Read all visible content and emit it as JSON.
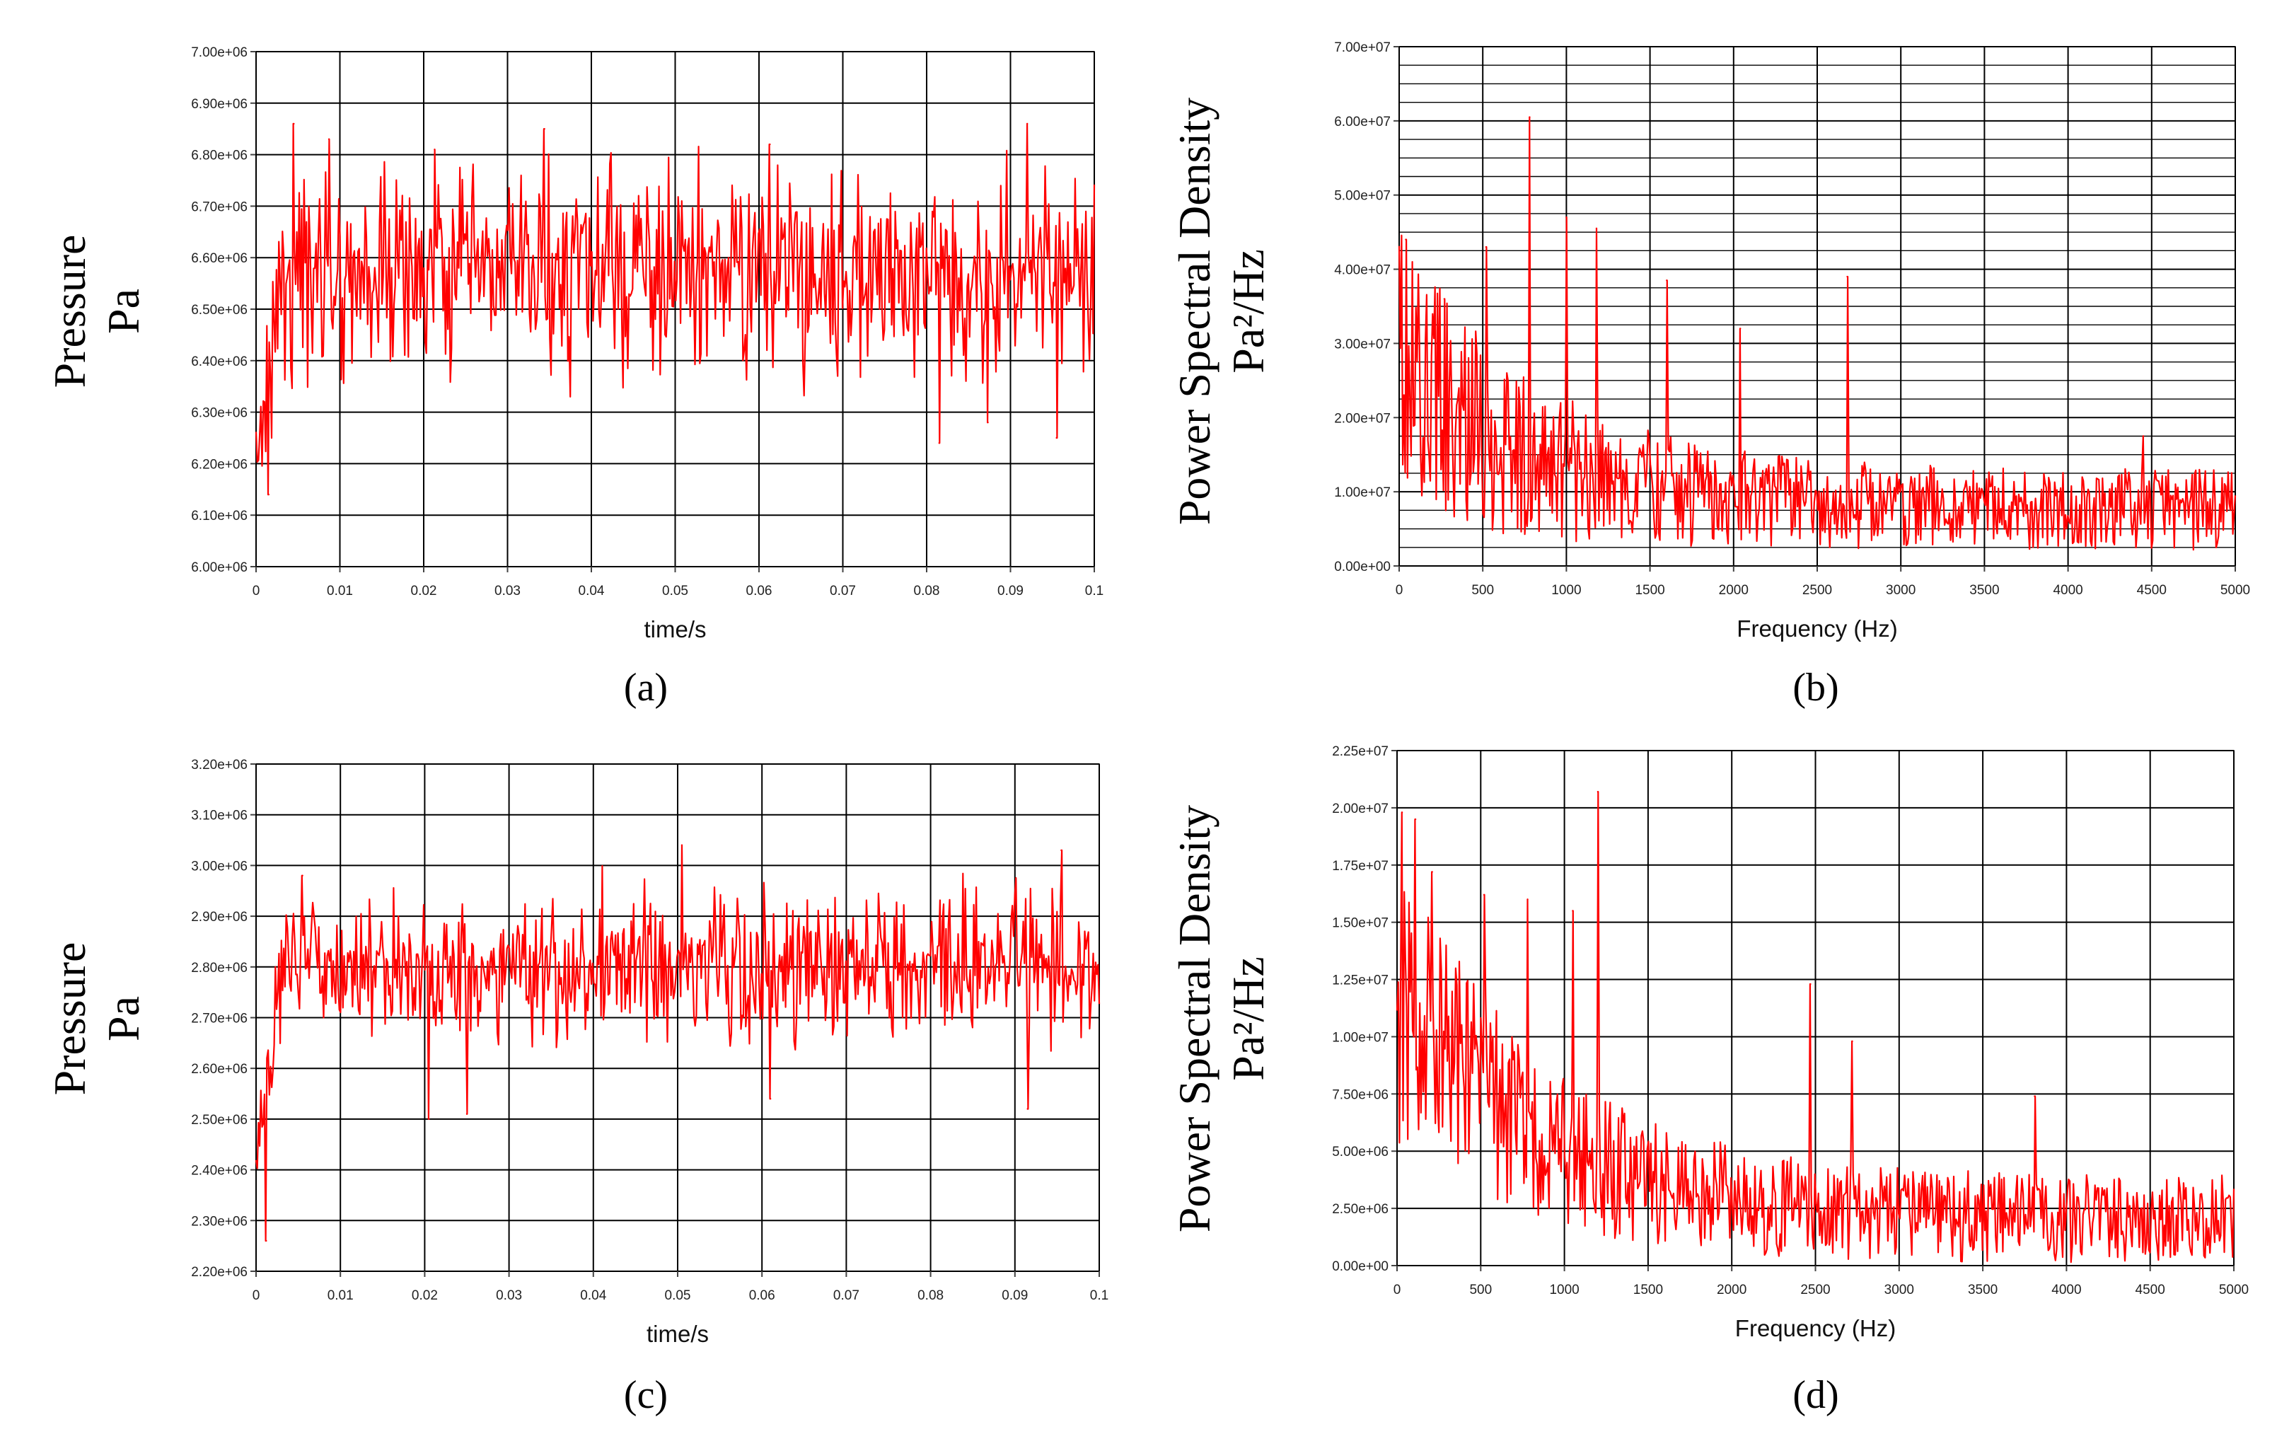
{
  "figure": {
    "panels": [
      "a",
      "b",
      "c",
      "d"
    ]
  },
  "chart_data": [
    {
      "id": "a",
      "type": "line",
      "caption": "(a)",
      "ylabel_lines": [
        "Pressure",
        "Pa"
      ],
      "xlabel": "time/s",
      "x_ticks": [
        "0",
        "0.01",
        "0.02",
        "0.03",
        "0.04",
        "0.05",
        "0.06",
        "0.07",
        "0.08",
        "0.09",
        "0.1"
      ],
      "y_ticks": [
        "6.00e+06",
        "6.10e+06",
        "6.20e+06",
        "6.30e+06",
        "6.40e+06",
        "6.50e+06",
        "6.60e+06",
        "6.70e+06",
        "6.80e+06",
        "6.90e+06",
        "7.00e+06"
      ],
      "xlim": [
        0,
        0.1
      ],
      "ylim": [
        6000000,
        7000000
      ],
      "series_color": "#ff0000",
      "signal": {
        "kind": "time",
        "baseline": 6570000,
        "amplitude": 95000,
        "start_value": 6200000,
        "min_value": 6140000,
        "max_value": 6860000,
        "num_points": 700
      },
      "peaks": [
        {
          "x": 0.0015,
          "y": 6140000
        },
        {
          "x": 0.0045,
          "y": 6860000
        },
        {
          "x": 0.0087,
          "y": 6830000
        },
        {
          "x": 0.0213,
          "y": 6810000
        },
        {
          "x": 0.0344,
          "y": 6850000
        },
        {
          "x": 0.0613,
          "y": 6820000
        },
        {
          "x": 0.0815,
          "y": 6240000
        },
        {
          "x": 0.0873,
          "y": 6280000
        },
        {
          "x": 0.092,
          "y": 6860000
        },
        {
          "x": 0.0955,
          "y": 6250000
        }
      ]
    },
    {
      "id": "b",
      "type": "line",
      "caption": "(b)",
      "ylabel_lines": [
        "Power Spectral Density",
        "Pa²/Hz"
      ],
      "xlabel": "Frequency (Hz)",
      "x_ticks": [
        "0",
        "500",
        "1000",
        "1500",
        "2000",
        "2500",
        "3000",
        "3500",
        "4000",
        "4500",
        "5000"
      ],
      "y_ticks": [
        "0.00e+00",
        "1.00e+07",
        "2.00e+07",
        "3.00e+07",
        "4.00e+07",
        "5.00e+07",
        "6.00e+07",
        "7.00e+07"
      ],
      "xlim": [
        0,
        5000
      ],
      "ylim": [
        0,
        70000000
      ],
      "minor_y_grid_per_major": 4,
      "series_color": "#ff0000",
      "signal": {
        "kind": "spectrum",
        "start_value": 38000000,
        "tail_value": 7000000,
        "amplitude": 9000000,
        "num_points": 700
      },
      "peaks": [
        {
          "x": 40,
          "y": 44000000
        },
        {
          "x": 270,
          "y": 36000000
        },
        {
          "x": 520,
          "y": 43000000
        },
        {
          "x": 780,
          "y": 60500000
        },
        {
          "x": 1000,
          "y": 47000000
        },
        {
          "x": 1180,
          "y": 45500000
        },
        {
          "x": 1600,
          "y": 38500000
        },
        {
          "x": 2040,
          "y": 32000000
        },
        {
          "x": 2680,
          "y": 39000000
        },
        {
          "x": 4450,
          "y": 17500000
        }
      ]
    },
    {
      "id": "c",
      "type": "line",
      "caption": "(c)",
      "ylabel_lines": [
        "Pressure",
        "Pa"
      ],
      "xlabel": "time/s",
      "x_ticks": [
        "0",
        "0.01",
        "0.02",
        "0.03",
        "0.04",
        "0.05",
        "0.06",
        "0.07",
        "0.08",
        "0.09",
        "0.1"
      ],
      "y_ticks": [
        "2.20e+06",
        "2.30e+06",
        "2.40e+06",
        "2.50e+06",
        "2.60e+06",
        "2.70e+06",
        "2.80e+06",
        "2.90e+06",
        "3.00e+06",
        "3.10e+06",
        "3.20e+06"
      ],
      "xlim": [
        0,
        0.1
      ],
      "ylim": [
        2200000,
        3200000
      ],
      "series_color": "#ff0000",
      "signal": {
        "kind": "time",
        "baseline": 2800000,
        "amplitude": 70000,
        "start_value": 2430000,
        "min_value": 2260000,
        "max_value": 3040000,
        "num_points": 700
      },
      "peaks": [
        {
          "x": 0.0012,
          "y": 2260000
        },
        {
          "x": 0.0055,
          "y": 2980000
        },
        {
          "x": 0.0205,
          "y": 2500000
        },
        {
          "x": 0.025,
          "y": 2510000
        },
        {
          "x": 0.0505,
          "y": 3040000
        },
        {
          "x": 0.061,
          "y": 2540000
        },
        {
          "x": 0.0915,
          "y": 2520000
        },
        {
          "x": 0.0955,
          "y": 3030000
        }
      ]
    },
    {
      "id": "d",
      "type": "line",
      "caption": "(d)",
      "ylabel_lines": [
        "Power Spectral Density",
        "Pa²/Hz"
      ],
      "xlabel": "Frequency (Hz)",
      "x_ticks": [
        "0",
        "500",
        "1000",
        "1500",
        "2000",
        "2500",
        "3000",
        "3500",
        "4000",
        "4500",
        "5000"
      ],
      "y_ticks": [
        "0.00e+00",
        "2.50e+06",
        "5.00e+06",
        "7.50e+06",
        "1.00e+07",
        "1.25e+07",
        "1.50e+07",
        "1.75e+07",
        "2.00e+07",
        "2.25e+07"
      ],
      "xlim": [
        0,
        5000
      ],
      "ylim": [
        0,
        22500000
      ],
      "series_color": "#ff0000",
      "signal": {
        "kind": "spectrum",
        "start_value": 19500000,
        "tail_value": 1800000,
        "amplitude": 3200000,
        "num_points": 700
      },
      "peaks": [
        {
          "x": 30,
          "y": 19800000
        },
        {
          "x": 110,
          "y": 19500000
        },
        {
          "x": 210,
          "y": 17200000
        },
        {
          "x": 520,
          "y": 16200000
        },
        {
          "x": 780,
          "y": 16000000
        },
        {
          "x": 1050,
          "y": 15500000
        },
        {
          "x": 1200,
          "y": 20700000
        },
        {
          "x": 2470,
          "y": 12300000
        },
        {
          "x": 2720,
          "y": 9800000
        },
        {
          "x": 3810,
          "y": 7400000
        }
      ]
    }
  ]
}
